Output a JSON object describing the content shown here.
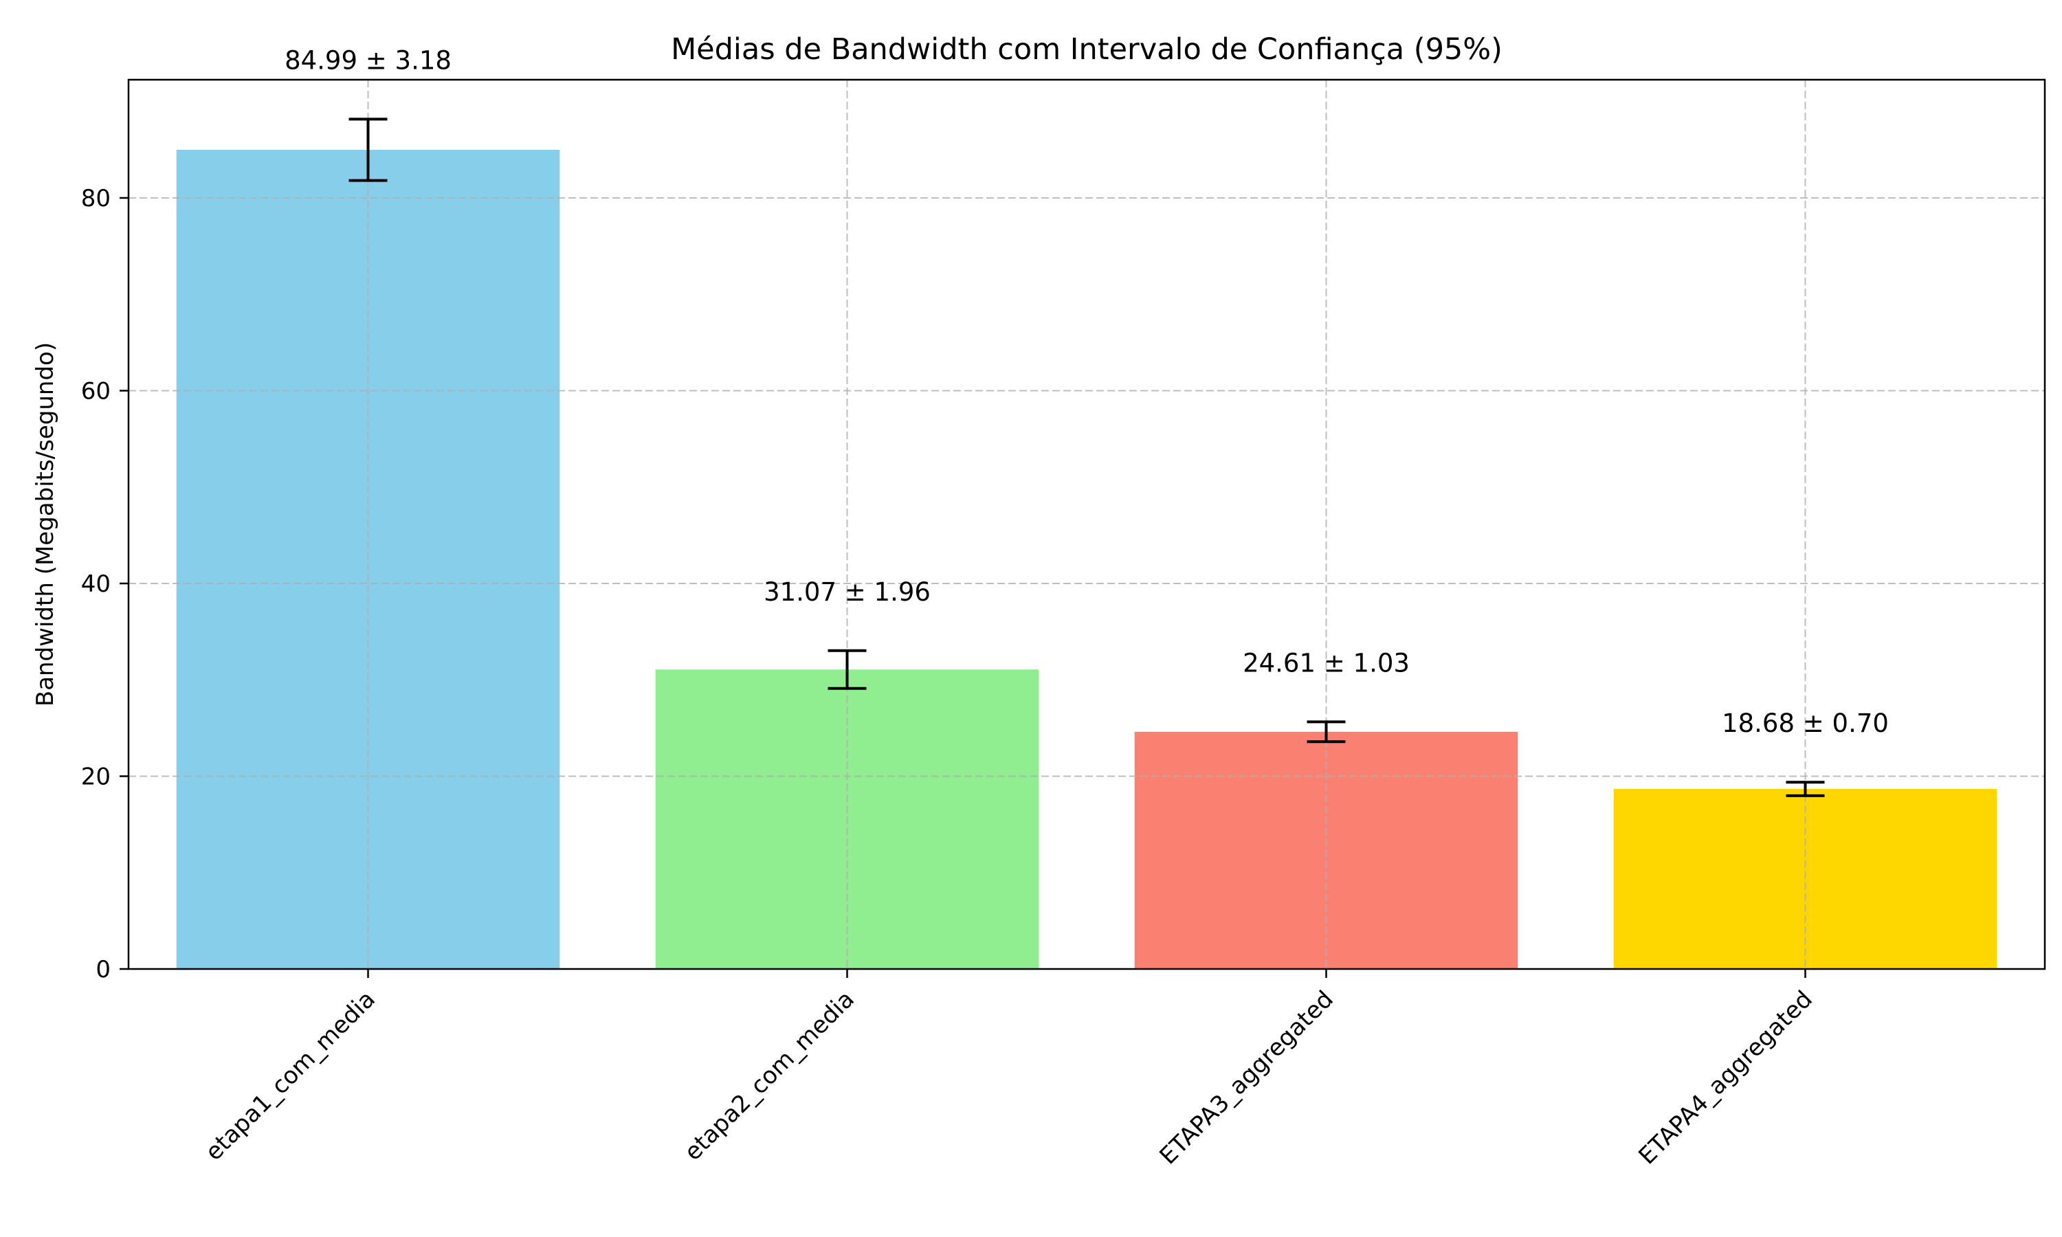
{
  "chart_data": {
    "type": "bar",
    "title": "Médias de Bandwidth com Intervalo de Confiança (95%)",
    "xlabel": "",
    "ylabel": "Bandwidth (Megabits/segundo)",
    "categories": [
      "etapa1_com_media",
      "etapa2_com_media",
      "ETAPA3_aggregated",
      "ETAPA4_aggregated"
    ],
    "values": [
      84.99,
      31.07,
      24.61,
      18.68
    ],
    "errors": [
      3.18,
      1.96,
      1.03,
      0.7
    ],
    "labels": [
      "84.99 ± 3.18",
      "31.07 ± 1.96",
      "24.61 ± 1.03",
      "18.68 ± 0.70"
    ],
    "colors": [
      "#87CEEB",
      "#90EE90",
      "#FA8072",
      "#FFD700"
    ],
    "ylim": [
      0,
      92.6
    ],
    "yticks": [
      "0",
      "20",
      "40",
      "60",
      "80"
    ],
    "grid": true
  }
}
